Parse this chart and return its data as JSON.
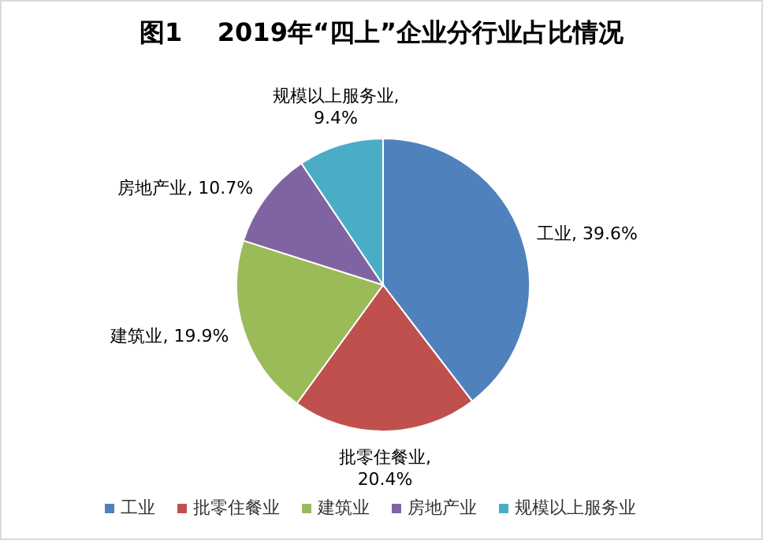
{
  "chart_data": {
    "type": "pie",
    "title": "图1    2019年“四上”企业分行业占比情况",
    "categories": [
      "工业",
      "批零住餐业",
      "建筑业",
      "房地产业",
      "规模以上服务业"
    ],
    "values": [
      39.6,
      20.4,
      19.9,
      10.7,
      9.4
    ],
    "value_labels": [
      "工业, 39.6%",
      "批零住餐业, 20.4%",
      "建筑业, 19.9%",
      "房地产业, 10.7%",
      "规模以上服务业, 9.4%"
    ],
    "colors": [
      "#4f81bd",
      "#c0504d",
      "#9bbb59",
      "#8064a2",
      "#4bacc6"
    ],
    "legend": "bottom"
  }
}
